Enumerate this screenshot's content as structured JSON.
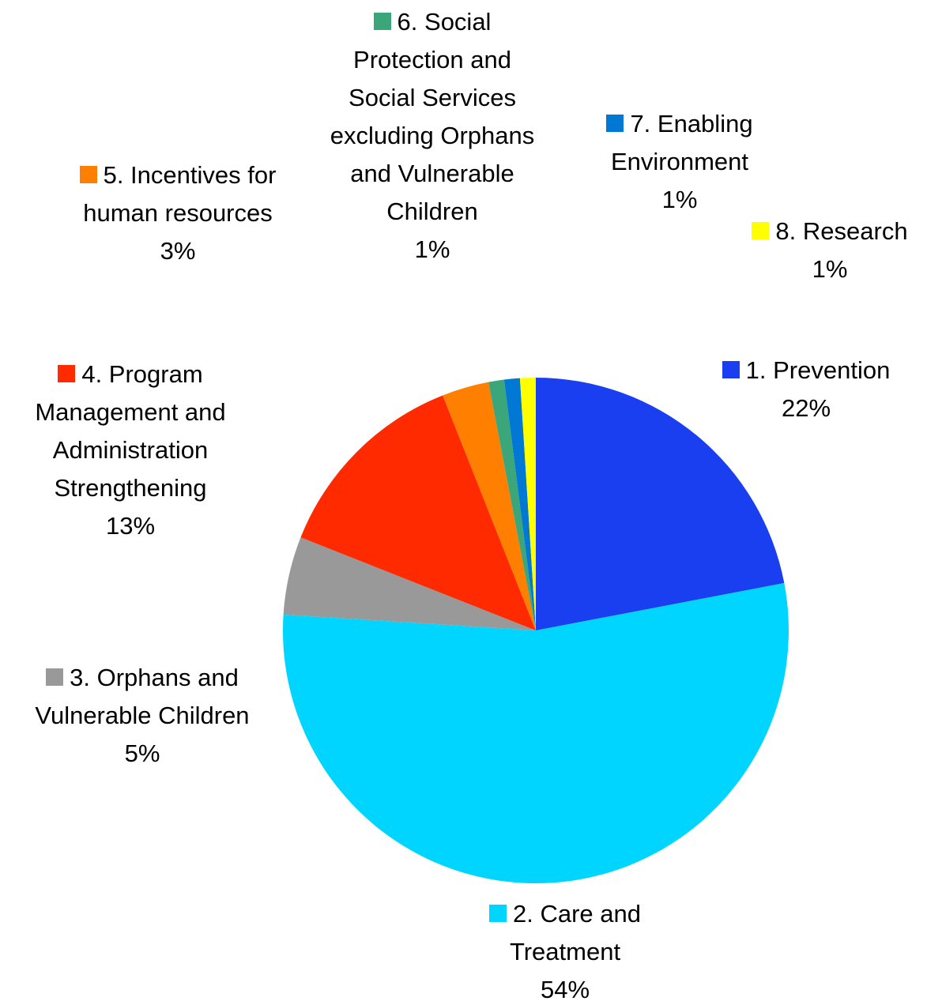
{
  "chart_data": {
    "type": "pie",
    "categories": [
      "1. Prevention",
      "2.  Care and Treatment",
      "3. Orphans and Vulnerable Children",
      "4. Program Management and Administration Strengthening",
      "5. Incentives for human resources",
      "6. Social Protection and Social Services excluding Orphans and Vulnerable Children",
      "7. Enabling Environment",
      "8. Research"
    ],
    "values": [
      22,
      54,
      5,
      13,
      3,
      1,
      1,
      1
    ],
    "value_labels": [
      "22%",
      "54%",
      "5%",
      "13%",
      "3%",
      "1%",
      "1%",
      "1%"
    ],
    "colors": [
      "#1a3ff0",
      "#00d5ff",
      "#999999",
      "#ff2a00",
      "#ff7f00",
      "#3aa67a",
      "#0078d4",
      "#ffff00"
    ]
  }
}
